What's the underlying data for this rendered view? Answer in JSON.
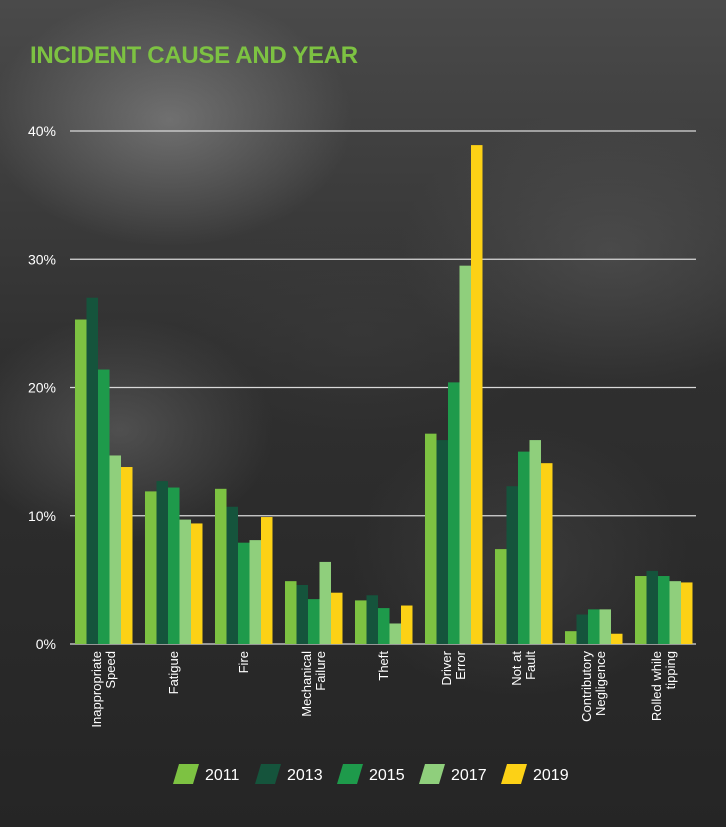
{
  "header": {
    "title": "INCIDENT CAUSE AND YEAR"
  },
  "chart_data": {
    "type": "bar",
    "title": "INCIDENT CAUSE AND YEAR",
    "xlabel": "",
    "ylabel": "",
    "ylim": [
      0,
      40
    ],
    "yticks": [
      "0%",
      "10%",
      "20%",
      "30%",
      "40%"
    ],
    "yticks_values": [
      0,
      10,
      20,
      30,
      40
    ],
    "grid": true,
    "legend_position": "bottom",
    "categories": [
      [
        "Inappropriate",
        "Speed"
      ],
      [
        "Fatigue"
      ],
      [
        "Fire"
      ],
      [
        "Mechanical",
        "Failure"
      ],
      [
        "Theft"
      ],
      [
        "Driver",
        "Error"
      ],
      [
        "Not at",
        "Fault"
      ],
      [
        "Contributory",
        "Negligence"
      ],
      [
        "Rolled while",
        "tipping"
      ]
    ],
    "series": [
      {
        "name": "2011",
        "color": "#7dc242",
        "values": [
          25.3,
          11.9,
          12.1,
          4.9,
          3.4,
          16.4,
          7.4,
          1.0,
          5.3
        ]
      },
      {
        "name": "2013",
        "color": "#15543c",
        "values": [
          27.0,
          12.7,
          10.7,
          4.6,
          3.8,
          15.9,
          12.3,
          2.3,
          5.7
        ]
      },
      {
        "name": "2015",
        "color": "#1e9a4b",
        "values": [
          21.4,
          12.2,
          7.9,
          3.5,
          2.8,
          20.4,
          15.0,
          2.7,
          5.3
        ]
      },
      {
        "name": "2017",
        "color": "#8fcf7c",
        "values": [
          14.7,
          9.7,
          8.1,
          6.4,
          1.6,
          29.5,
          15.9,
          2.7,
          4.9
        ]
      },
      {
        "name": "2019",
        "color": "#fcd116",
        "values": [
          13.8,
          9.4,
          9.9,
          4.0,
          3.0,
          38.9,
          14.1,
          0.8,
          4.8
        ]
      }
    ]
  }
}
